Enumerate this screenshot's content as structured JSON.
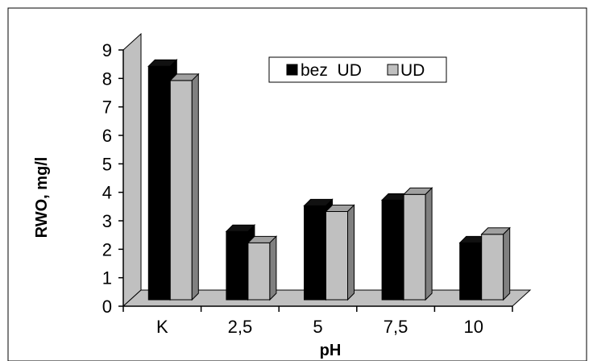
{
  "chart_data": {
    "type": "bar",
    "categories": [
      "K",
      "2,5",
      "5",
      "7,5",
      "10"
    ],
    "series": [
      {
        "name": "bez  UD",
        "values": [
          8.2,
          2.4,
          3.3,
          3.5,
          2.0
        ]
      },
      {
        "name": "UD",
        "values": [
          7.7,
          2.0,
          3.1,
          3.7,
          2.3
        ]
      }
    ],
    "xlabel": "pH",
    "ylabel": "RWO, mg/l",
    "ylim": [
      0,
      9
    ],
    "yticks": [
      "0",
      "1",
      "2",
      "3",
      "4",
      "5",
      "6",
      "7",
      "8",
      "9"
    ],
    "grid": false,
    "legend_position": "top-center",
    "style": "3d-column"
  },
  "colors": {
    "series_fill": [
      "#000000",
      "#c0c0c0"
    ],
    "series_side": [
      "#000000",
      "#808080"
    ],
    "series_top": [
      "#111111",
      "#a0a0a0"
    ],
    "walls": "#c0c0c0",
    "background": "#ffffff",
    "border": "#000000"
  }
}
